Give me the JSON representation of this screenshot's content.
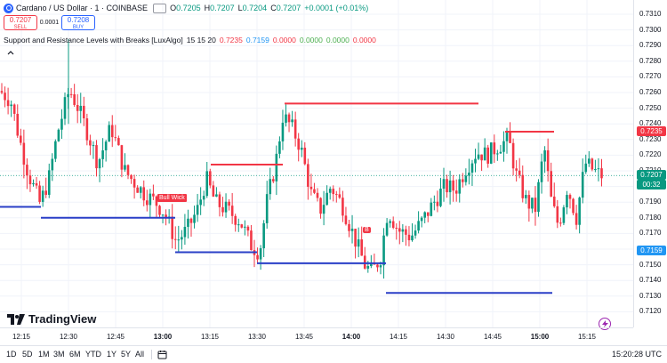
{
  "header": {
    "symbol": "Cardano / US Dollar · 1 · COINBASE",
    "ohlc": [
      {
        "label": "O",
        "value": "0.7205"
      },
      {
        "label": "H",
        "value": "0.7207"
      },
      {
        "label": "L",
        "value": "0.7204"
      },
      {
        "label": "C",
        "value": "0.7207"
      }
    ],
    "change": "+0.0001 (+0.01%)"
  },
  "trade": {
    "sell_price": "0.7207",
    "sell_label": "SELL",
    "spread": "0.0001",
    "buy_price": "0.7208",
    "buy_label": "BUY"
  },
  "indicator": {
    "name": "Support and Resistance Levels with Breaks [LuxAlgo]",
    "params": "15 15 20",
    "values": [
      {
        "text": "0.7235",
        "color": "#f23645"
      },
      {
        "text": "0.7159",
        "color": "#2196f3"
      },
      {
        "text": "0.0000",
        "color": "#f23645"
      },
      {
        "text": "0.0000",
        "color": "#4caf50"
      },
      {
        "text": "0.0000",
        "color": "#4caf50"
      },
      {
        "text": "0.0000",
        "color": "#f23645"
      }
    ]
  },
  "price_axis": {
    "ticks": [
      "0.7310",
      "0.7300",
      "0.7290",
      "0.7280",
      "0.7270",
      "0.7260",
      "0.7250",
      "0.7240",
      "0.7230",
      "0.7220",
      "0.7210",
      "0.7200",
      "0.7190",
      "0.7180",
      "0.7170",
      "0.7160",
      "0.7150",
      "0.7140",
      "0.7130",
      "0.7120"
    ],
    "current_price": "0.7207",
    "countdown": "00:32",
    "resistance_price": "0.7235",
    "support_price": "0.7159"
  },
  "time_axis": {
    "ticks": [
      {
        "label": "12:15",
        "bold": false
      },
      {
        "label": "12:30",
        "bold": false
      },
      {
        "label": "12:45",
        "bold": false
      },
      {
        "label": "13:00",
        "bold": true
      },
      {
        "label": "13:15",
        "bold": false
      },
      {
        "label": "13:30",
        "bold": false
      },
      {
        "label": "13:45",
        "bold": false
      },
      {
        "label": "14:00",
        "bold": true
      },
      {
        "label": "14:15",
        "bold": false
      },
      {
        "label": "14:30",
        "bold": false
      },
      {
        "label": "14:45",
        "bold": false
      },
      {
        "label": "15:00",
        "bold": true
      },
      {
        "label": "15:15",
        "bold": false
      }
    ]
  },
  "ranges": [
    "1D",
    "5D",
    "1M",
    "3M",
    "6M",
    "YTD",
    "1Y",
    "5Y",
    "All"
  ],
  "clock": "15:20:28 UTC",
  "brand": "TradingView",
  "labels": {
    "bull_wick": "Bull Wick",
    "break_marker": "B"
  },
  "colors": {
    "up": "#089981",
    "down": "#f23645",
    "resistance": "#f23645",
    "support": "#2a3fc7",
    "accent": "#2962ff"
  }
}
